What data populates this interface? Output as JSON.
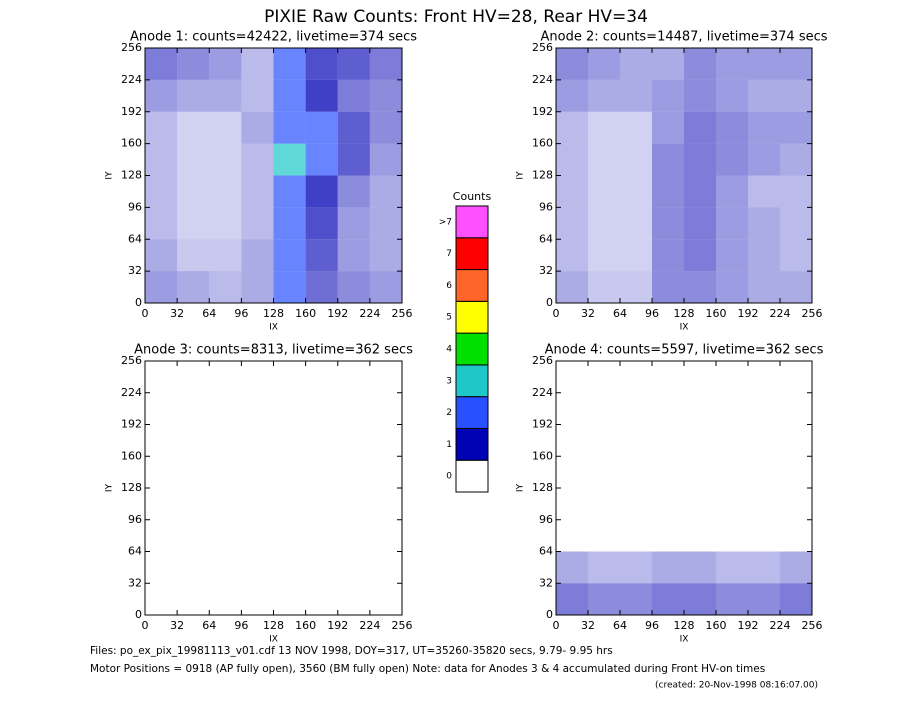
{
  "chart_data": {
    "type": "heatmap",
    "title": "PIXIE Raw Counts:  Front HV=28, Rear HV=34",
    "panels": [
      {
        "title": "Anode 1: counts=42422, livetime=374 secs",
        "xlabel": "IX",
        "ylabel": "IY",
        "xlim": [
          0,
          256
        ],
        "ylim": [
          0,
          256
        ],
        "xticks": [
          0,
          32,
          64,
          96,
          128,
          160,
          192,
          224,
          256
        ],
        "yticks": [
          0,
          32,
          64,
          96,
          128,
          160,
          192,
          224,
          256
        ],
        "z": [
          [
            0.4,
            0.3,
            0.2,
            0.3,
            1.5,
            0.7,
            0.5,
            0.4
          ],
          [
            0.3,
            0.1,
            0.1,
            0.3,
            1.8,
            0.8,
            0.4,
            0.3
          ],
          [
            0.2,
            0.05,
            0.05,
            0.2,
            1.8,
            0.9,
            0.4,
            0.3
          ],
          [
            0.2,
            0.05,
            0.05,
            0.2,
            2.0,
            1.0,
            0.5,
            0.3
          ],
          [
            0.2,
            0.05,
            0.05,
            0.2,
            2.2,
            1.3,
            0.8,
            0.4
          ],
          [
            0.2,
            0.05,
            0.05,
            0.3,
            2.0,
            1.2,
            0.8,
            0.5
          ],
          [
            0.4,
            0.3,
            0.3,
            0.2,
            1.6,
            1.0,
            0.6,
            0.5
          ],
          [
            0.6,
            0.5,
            0.4,
            0.2,
            1.5,
            0.9,
            0.8,
            0.6
          ]
        ]
      },
      {
        "title": "Anode 2: counts=14487, livetime=374 secs",
        "xlabel": "IX",
        "ylabel": "IY",
        "xlim": [
          0,
          256
        ],
        "ylim": [
          0,
          256
        ],
        "xticks": [
          0,
          32,
          64,
          96,
          128,
          160,
          192,
          224,
          256
        ],
        "yticks": [
          0,
          32,
          64,
          96,
          128,
          160,
          192,
          224,
          256
        ],
        "z": [
          [
            0.3,
            0.1,
            0.1,
            0.5,
            0.5,
            0.4,
            0.3,
            0.3
          ],
          [
            0.2,
            0.05,
            0.05,
            0.5,
            0.6,
            0.4,
            0.3,
            0.2
          ],
          [
            0.2,
            0.05,
            0.05,
            0.5,
            0.6,
            0.4,
            0.3,
            0.2
          ],
          [
            0.2,
            0.05,
            0.05,
            0.5,
            0.6,
            0.4,
            0.2,
            0.2
          ],
          [
            0.2,
            0.05,
            0.05,
            0.5,
            0.6,
            0.5,
            0.4,
            0.3
          ],
          [
            0.2,
            0.05,
            0.05,
            0.4,
            0.6,
            0.5,
            0.4,
            0.4
          ],
          [
            0.4,
            0.3,
            0.3,
            0.4,
            0.5,
            0.4,
            0.3,
            0.3
          ],
          [
            0.5,
            0.4,
            0.3,
            0.3,
            0.5,
            0.4,
            0.4,
            0.4
          ]
        ]
      },
      {
        "title": "Anode 3: counts=8313, livetime=362 secs",
        "xlabel": "IX",
        "ylabel": "IY",
        "xlim": [
          0,
          256
        ],
        "ylim": [
          0,
          256
        ],
        "xticks": [
          0,
          32,
          64,
          96,
          128,
          160,
          192,
          224,
          256
        ],
        "yticks": [
          0,
          32,
          64,
          96,
          128,
          160,
          192,
          224,
          256
        ],
        "z": [
          [
            0,
            0,
            0,
            0,
            0,
            0,
            0,
            0
          ],
          [
            0,
            0,
            0,
            0,
            0,
            0,
            0,
            0
          ],
          [
            0,
            0,
            0,
            0,
            0,
            0,
            0,
            0
          ],
          [
            0,
            0,
            0,
            0,
            0,
            0,
            0,
            0
          ],
          [
            0,
            0,
            0,
            0,
            0,
            0,
            0,
            0
          ],
          [
            0,
            0,
            0,
            0,
            0,
            0,
            0,
            0
          ],
          [
            0,
            0,
            0,
            0,
            0,
            0,
            0,
            0
          ],
          [
            0,
            0,
            0,
            0,
            0,
            0,
            0,
            0
          ]
        ]
      },
      {
        "title": "Anode 4: counts=5597, livetime=362 secs",
        "xlabel": "IX",
        "ylabel": "IY",
        "xlim": [
          0,
          256
        ],
        "ylim": [
          0,
          256
        ],
        "xticks": [
          0,
          32,
          64,
          96,
          128,
          160,
          192,
          224,
          256
        ],
        "yticks": [
          0,
          32,
          64,
          96,
          128,
          160,
          192,
          224,
          256
        ],
        "z": [
          [
            0.6,
            0.5,
            0.5,
            0.6,
            0.6,
            0.5,
            0.5,
            0.6
          ],
          [
            0.3,
            0.2,
            0.2,
            0.3,
            0.3,
            0.2,
            0.2,
            0.3
          ],
          [
            0,
            0,
            0,
            0,
            0,
            0,
            0,
            0
          ],
          [
            0,
            0,
            0,
            0,
            0,
            0,
            0,
            0
          ],
          [
            0,
            0,
            0,
            0,
            0,
            0,
            0,
            0
          ],
          [
            0,
            0,
            0,
            0,
            0,
            0,
            0,
            0
          ],
          [
            0,
            0,
            0,
            0,
            0,
            0,
            0,
            0
          ],
          [
            0,
            0,
            0,
            0,
            0,
            0,
            0,
            0
          ]
        ]
      }
    ],
    "colorbar": {
      "title": "Counts",
      "ticks": [
        0,
        1,
        2,
        3,
        4,
        5,
        6,
        7,
        {
          "value": 8,
          "label": ">7"
        }
      ],
      "colors": [
        "#ffffff",
        "#0000b4",
        "#2850ff",
        "#1ec8c8",
        "#00e000",
        "#ffff00",
        "#ff6428",
        "#ff0000",
        "#ff50ff"
      ]
    },
    "notes": [
      "Files: po_ex_pix_19981113_v01.cdf    13 NOV 1998, DOY=317, UT=35260-35820 secs,  9.79- 9.95 hrs",
      "Motor Positions = 0918 (AP fully open), 3560 (BM fully open)    Note: data for Anodes 3 & 4 accumulated during Front HV-on times",
      "(created: 20-Nov-1998 08:16:07.00)"
    ]
  }
}
